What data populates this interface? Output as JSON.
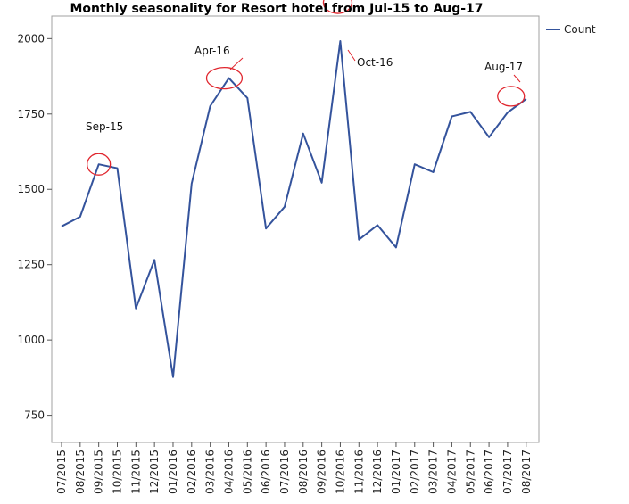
{
  "colors": {
    "series": "#34539c",
    "annotation_circle": "#e0262e",
    "frame": "#a0a0a0",
    "grid_tick": "#555555"
  },
  "chart_data": {
    "type": "line",
    "title": "Monthly seasonality for Resort hotel from Jul-15 to Aug-17",
    "xlabel": "",
    "ylabel": "",
    "ylim": [
      660,
      2075
    ],
    "yticks": [
      750,
      1000,
      1250,
      1500,
      1750,
      2000
    ],
    "grid": false,
    "legend_position": "top-right",
    "categories": [
      "07/2015",
      "08/2015",
      "09/2015",
      "10/2015",
      "11/2015",
      "12/2015",
      "01/2016",
      "02/2016",
      "03/2016",
      "04/2016",
      "05/2016",
      "06/2016",
      "07/2016",
      "08/2016",
      "09/2016",
      "10/2016",
      "11/2016",
      "12/2016",
      "01/2017",
      "02/2017",
      "03/2017",
      "04/2017",
      "05/2017",
      "06/2017",
      "07/2017",
      "08/2017"
    ],
    "series": [
      {
        "name": "Count",
        "values": [
          1377,
          1409,
          1583,
          1570,
          1105,
          1266,
          877,
          1519,
          1776,
          1869,
          1803,
          1370,
          1442,
          1685,
          1522,
          1992,
          1333,
          1381,
          1307,
          1583,
          1557,
          1742,
          1757,
          1673,
          1755,
          1800
        ]
      }
    ],
    "annotations": [
      {
        "label": "Sep-15",
        "category": "09/2015"
      },
      {
        "label": "Apr-16",
        "category": "04/2016"
      },
      {
        "label": "Oct-16",
        "category": "10/2016"
      },
      {
        "label": "Aug-17",
        "category": "08/2017"
      }
    ]
  }
}
